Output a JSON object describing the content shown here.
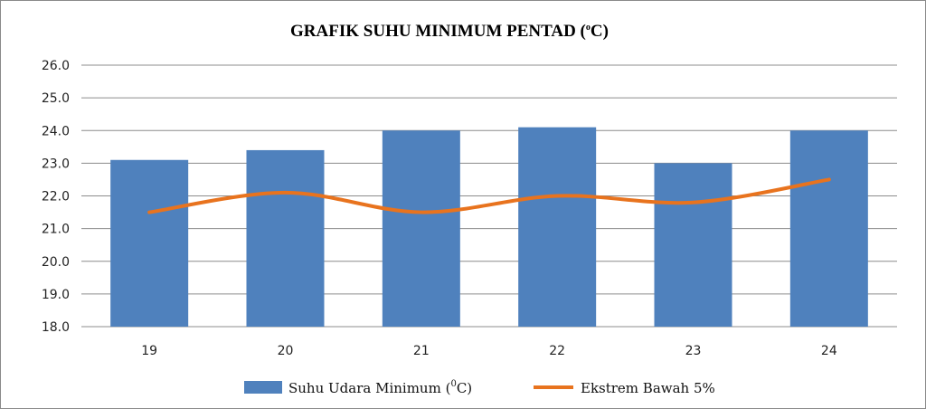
{
  "chart_data": {
    "type": "bar",
    "title": "GRAFIK SUHU MINIMUM PENTAD (",
    "title_unit_sup": "o",
    "title_unit_tail": "C)",
    "categories": [
      "19",
      "20",
      "21",
      "22",
      "23",
      "24"
    ],
    "ylim": [
      18.0,
      26.0
    ],
    "yticks": [
      "18.0",
      "19.0",
      "20.0",
      "21.0",
      "22.0",
      "23.0",
      "24.0",
      "25.0",
      "26.0"
    ],
    "grid": true,
    "legend_position": "bottom",
    "series": [
      {
        "name": "Suhu Udara Minimum (",
        "name_sup": "0",
        "name_tail": "C)",
        "kind": "bar",
        "color": "#4f81bd",
        "values": [
          23.1,
          23.4,
          24.0,
          24.1,
          23.0,
          24.0
        ]
      },
      {
        "name": "Ekstrem Bawah  5%",
        "kind": "line",
        "color": "#e8731e",
        "values": [
          21.5,
          22.1,
          21.5,
          22.0,
          21.8,
          22.5
        ]
      }
    ]
  }
}
